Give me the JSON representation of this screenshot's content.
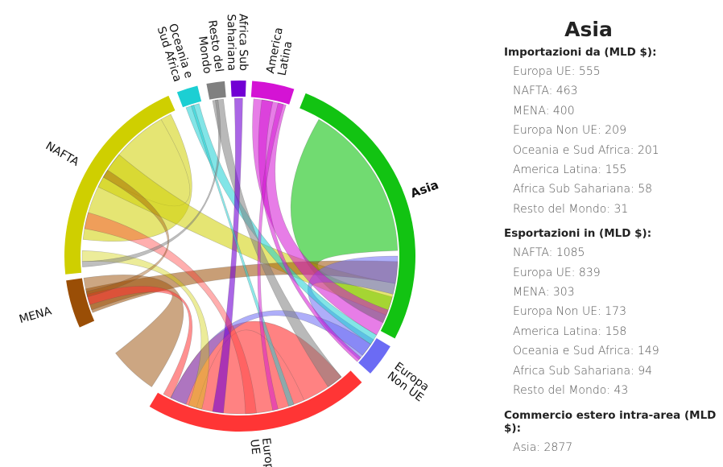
{
  "diagram": {
    "regions": [
      {
        "name": "Asia",
        "label_lines": [
          "Asia"
        ],
        "color": "#12c312",
        "selected": true
      },
      {
        "name": "Europa Non UE",
        "label_lines": [
          "Europa",
          "Non UE"
        ],
        "color": "#6b6bf4"
      },
      {
        "name": "Europa UE",
        "label_lines": [
          "Europa",
          "UE"
        ],
        "color": "#ff3535"
      },
      {
        "name": "MENA",
        "label_lines": [
          "MENA"
        ],
        "color": "#9a4e06"
      },
      {
        "name": "NAFTA",
        "label_lines": [
          "NAFTA"
        ],
        "color": "#cfcf00"
      },
      {
        "name": "Oceania e Sud Africa",
        "label_lines": [
          "Oceania e",
          "Sud Africa"
        ],
        "color": "#1ccfd3"
      },
      {
        "name": "Resto del Mondo",
        "label_lines": [
          "Resto del",
          "Mondo"
        ],
        "color": "#808080"
      },
      {
        "name": "Africa Sub Sahariana",
        "label_lines": [
          "Africa Sub",
          "Sahariana"
        ],
        "color": "#7200d4"
      },
      {
        "name": "America Latina",
        "label_lines": [
          "America",
          "Latina"
        ],
        "color": "#d413d4"
      }
    ]
  },
  "panel": {
    "title": "Asia",
    "sections": [
      {
        "title": "Importazioni da (MLD $):",
        "items": [
          {
            "text": "Europa UE: 555"
          },
          {
            "text": "NAFTA: 463"
          },
          {
            "text": "MENA: 400"
          },
          {
            "text": "Europa Non UE: 209"
          },
          {
            "text": "Oceania e Sud Africa: 201"
          },
          {
            "text": "America Latina: 155"
          },
          {
            "text": "Africa Sub Sahariana: 58"
          },
          {
            "text": "Resto del Mondo: 31"
          }
        ]
      },
      {
        "title": "Esportazioni in (MLD $):",
        "items": [
          {
            "text": "NAFTA: 1085"
          },
          {
            "text": "Europa UE: 839"
          },
          {
            "text": "MENA: 303"
          },
          {
            "text": "Europa Non UE: 173"
          },
          {
            "text": "America Latina: 158"
          },
          {
            "text": "Oceania e Sud Africa: 149"
          },
          {
            "text": "Africa Sub Sahariana: 94"
          },
          {
            "text": "Resto del Mondo: 43"
          }
        ]
      },
      {
        "title": "Commercio estero intra-area (MLD $):",
        "items": [
          {
            "text": "Asia: 2877"
          }
        ]
      }
    ]
  }
}
